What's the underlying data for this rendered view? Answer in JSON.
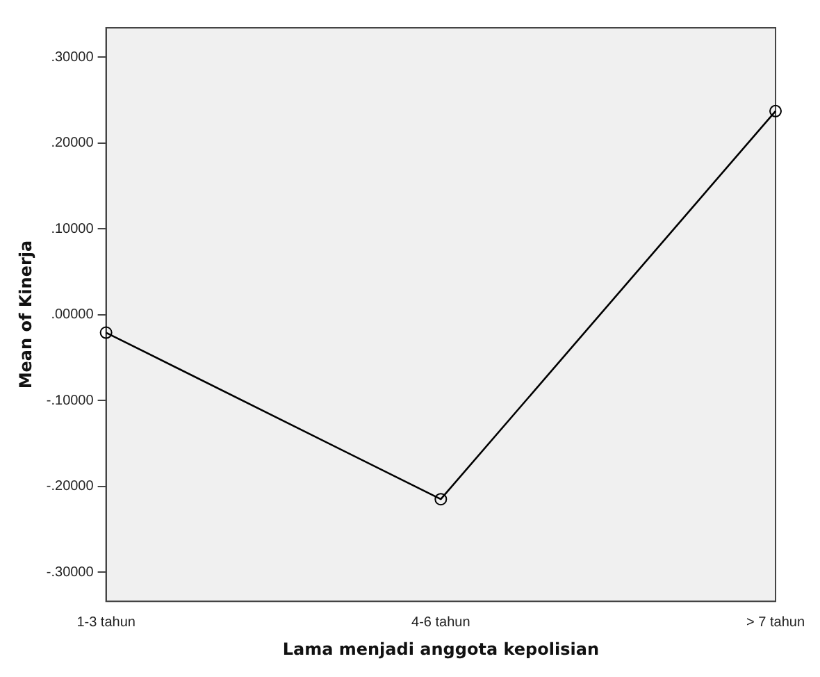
{
  "chart_data": {
    "type": "line",
    "xlabel": "Lama menjadi anggota kepolisian",
    "ylabel": "Mean of Kinerja",
    "categories": [
      "1-3 tahun",
      "4-6 tahun",
      "> 7 tahun"
    ],
    "series": [
      {
        "color": "#000000",
        "values": [
          -0.021,
          -0.215,
          0.237
        ]
      }
    ],
    "ylim": [
      -0.334,
      0.334
    ],
    "yticks": [
      {
        "value": -0.3,
        "label": "-.30000"
      },
      {
        "value": -0.2,
        "label": "-.20000"
      },
      {
        "value": -0.1,
        "label": "-.10000"
      },
      {
        "value": 0,
        "label": ".00000"
      },
      {
        "value": 0.1,
        "label": ".10000"
      },
      {
        "value": 0.2,
        "label": ".20000"
      },
      {
        "value": 0.3,
        "label": ".30000"
      }
    ],
    "grid": false,
    "legend": false,
    "marker": "circle",
    "line_style": "solid"
  }
}
